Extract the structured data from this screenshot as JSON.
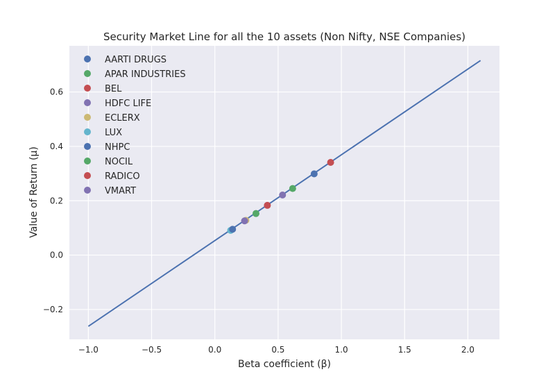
{
  "chart_data": {
    "type": "scatter",
    "title": "Security Market Line for all the 10 assets (Non Nifty, NSE Companies)",
    "xlabel": "Beta coefficient (β)",
    "ylabel": "Value of Return (μ)",
    "xlim": [
      -1.15,
      2.25
    ],
    "ylim": [
      -0.31,
      0.77
    ],
    "xticks": [
      -1.0,
      -0.5,
      0.0,
      0.5,
      1.0,
      1.5,
      2.0
    ],
    "yticks": [
      -0.2,
      0.0,
      0.2,
      0.4,
      0.6
    ],
    "xtick_labels": [
      "−1.0",
      "−0.5",
      "0.0",
      "0.5",
      "1.0",
      "1.5",
      "2.0"
    ],
    "ytick_labels": [
      "−0.2",
      "0.0",
      "0.2",
      "0.4",
      "0.6"
    ],
    "grid": true,
    "legend_position": "top-left",
    "sml_line": {
      "color": "#4c72b0",
      "x": [
        -1.0,
        2.1
      ],
      "y": [
        -0.262,
        0.716
      ]
    },
    "series": [
      {
        "name": "AARTI DRUGS",
        "color": "#4c72b0",
        "x": 0.785,
        "y": 0.299
      },
      {
        "name": "APAR INDUSTRIES",
        "color": "#55a868",
        "x": 0.615,
        "y": 0.245
      },
      {
        "name": "BEL",
        "color": "#c44e52",
        "x": 0.915,
        "y": 0.341
      },
      {
        "name": "HDFC LIFE",
        "color": "#8172b2",
        "x": 0.535,
        "y": 0.221
      },
      {
        "name": "ECLERX",
        "color": "#ccb974",
        "x": 0.245,
        "y": 0.128
      },
      {
        "name": "LUX",
        "color": "#64b5cd",
        "x": 0.125,
        "y": 0.091
      },
      {
        "name": "NHPC",
        "color": "#4c72b0",
        "x": 0.14,
        "y": 0.095
      },
      {
        "name": "NOCIL",
        "color": "#55a868",
        "x": 0.325,
        "y": 0.153
      },
      {
        "name": "RADICO",
        "color": "#c44e52",
        "x": 0.415,
        "y": 0.183
      },
      {
        "name": "VMART",
        "color": "#8172b2",
        "x": 0.235,
        "y": 0.126
      }
    ]
  }
}
